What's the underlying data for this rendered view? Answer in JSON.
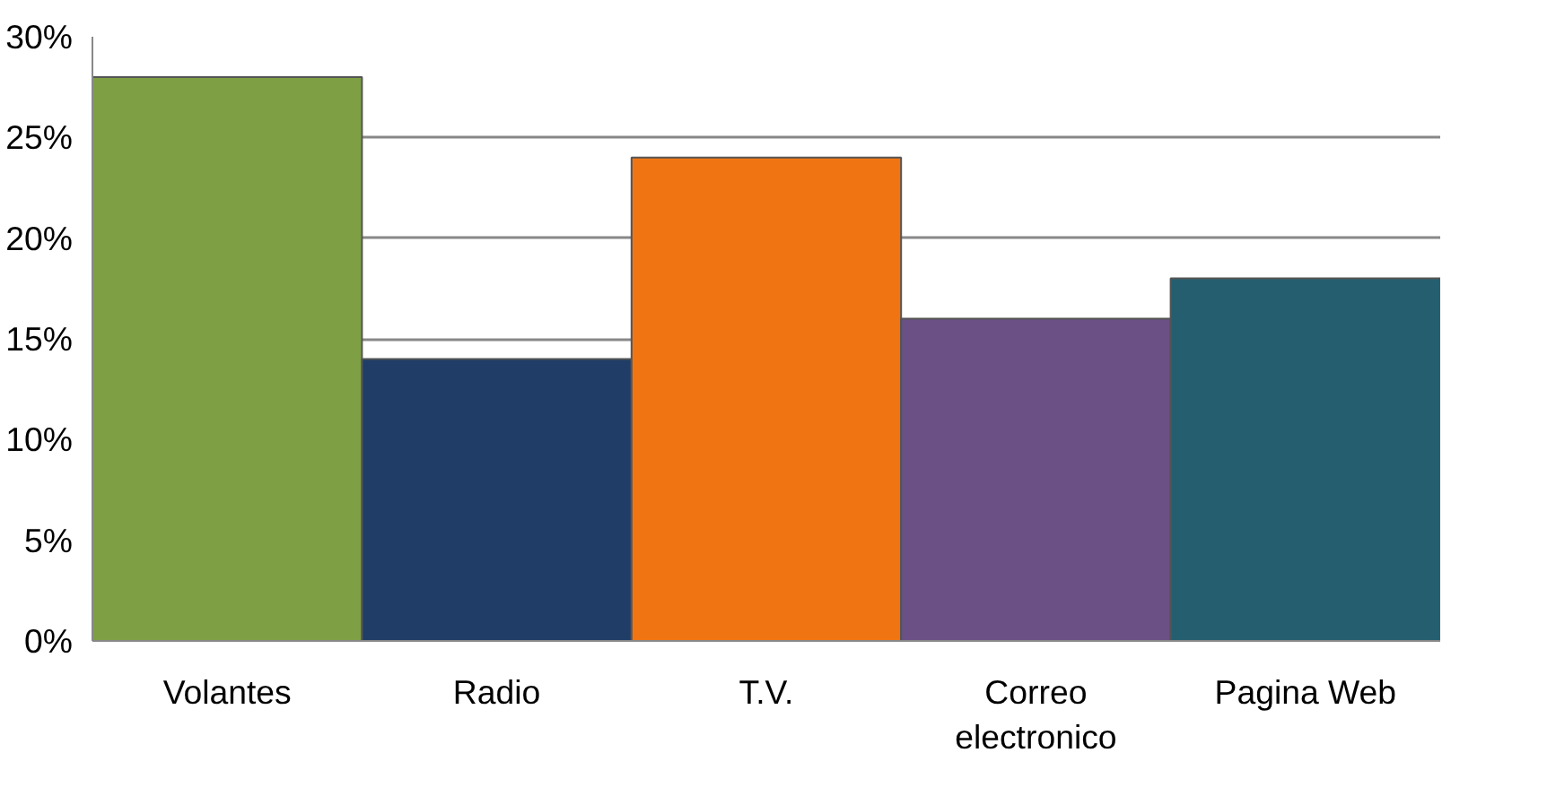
{
  "chart_data": {
    "type": "bar",
    "categories": [
      "Volantes",
      "Radio",
      "T.V.",
      "Correo electronico",
      "Pagina Web"
    ],
    "values": [
      28,
      14,
      24,
      16,
      18
    ],
    "colors": [
      "#7f9f45",
      "#1f3d66",
      "#f07512",
      "#6a5085",
      "#255f6f"
    ],
    "ylim": [
      0,
      30
    ],
    "yticks": [
      {
        "value": 0,
        "label": "0%"
      },
      {
        "value": 5,
        "label": "5%"
      },
      {
        "value": 10,
        "label": "10%"
      },
      {
        "value": 15,
        "label": "15%"
      },
      {
        "value": 20,
        "label": "20%"
      },
      {
        "value": 25,
        "label": "25%"
      },
      {
        "value": 30,
        "label": "30%"
      }
    ],
    "grid": "y"
  }
}
